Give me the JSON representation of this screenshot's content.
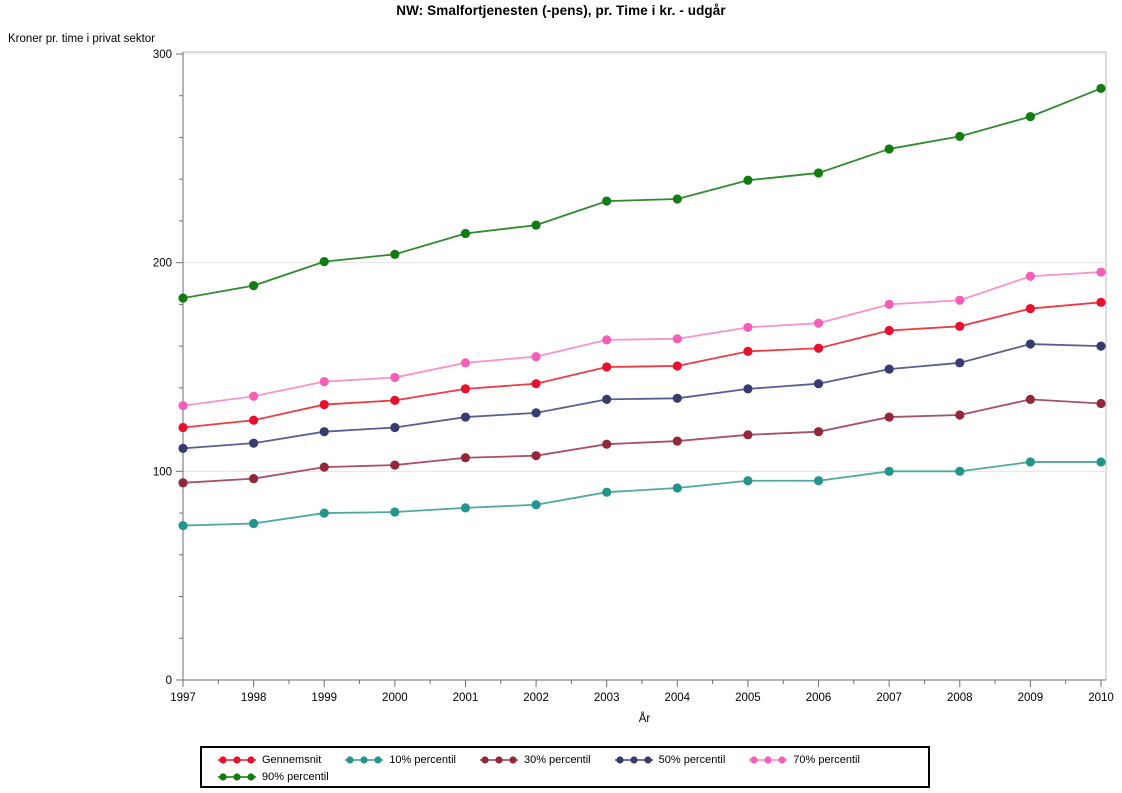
{
  "title": "NW: Smalfortjenesten (-pens), pr. Time i kr. - udgår",
  "chart_data": {
    "type": "line",
    "title": "NW: Smalfortjenesten (-pens), pr. Time i kr. - udgår",
    "ylabel": "Kroner pr. time i privat sektor",
    "xlabel": "År",
    "x": [
      1997,
      1998,
      1999,
      2000,
      2001,
      2002,
      2003,
      2004,
      2005,
      2006,
      2007,
      2008,
      2009,
      2010
    ],
    "ylim": [
      0,
      300
    ],
    "y_major_ticks": [
      0,
      100,
      200,
      300
    ],
    "y_minor_step": 20,
    "grid": "horizontal gridlines at major y ticks",
    "legend_position": "bottom",
    "series": [
      {
        "name": "Gennemsnit",
        "marker_color": "#e8112d",
        "line_color": "#ee3b44",
        "values": [
          121,
          124.5,
          132,
          134,
          139.5,
          142,
          150,
          150.5,
          157.5,
          159,
          167.5,
          169.5,
          178,
          181
        ]
      },
      {
        "name": "10% percentil",
        "marker_color": "#23958d",
        "line_color": "#4fa8a2",
        "values": [
          74,
          75,
          80,
          80.5,
          82.5,
          84,
          90,
          92,
          95.5,
          95.5,
          100,
          100,
          104.5,
          104.5
        ]
      },
      {
        "name": "30% percentil",
        "marker_color": "#92293b",
        "line_color": "#a85264",
        "values": [
          94.5,
          96.5,
          102,
          103,
          106.5,
          107.5,
          113,
          114.5,
          117.5,
          119,
          126,
          127,
          134.5,
          132.5
        ]
      },
      {
        "name": "50% percentil",
        "marker_color": "#373b70",
        "line_color": "#5a5f93",
        "values": [
          111,
          113.5,
          119,
          121,
          126,
          128,
          134.5,
          135,
          139.5,
          142,
          149,
          152,
          161,
          160
        ]
      },
      {
        "name": "70% percentil",
        "marker_color": "#f75eb7",
        "line_color": "#fa93cd",
        "values": [
          131.5,
          136,
          143,
          145,
          152,
          155,
          163,
          163.5,
          169,
          171,
          180,
          182,
          193.5,
          195.5
        ]
      },
      {
        "name": "90% percentil",
        "marker_color": "#117c11",
        "line_color": "#2e8b2e",
        "values": [
          183,
          189,
          200.5,
          204,
          214,
          218,
          229.5,
          230.5,
          239.5,
          243,
          254.5,
          260.5,
          270,
          283.5
        ]
      }
    ],
    "colors": {
      "axis": "#6e6e6e",
      "frame": "#b8b8b8",
      "gridline": "#e4e4e4",
      "background": "#ffffff",
      "legend_border": "#000000"
    }
  }
}
